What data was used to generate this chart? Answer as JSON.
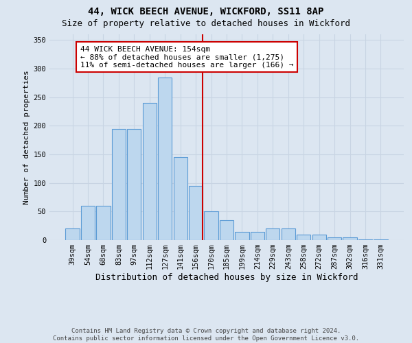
{
  "title": "44, WICK BEECH AVENUE, WICKFORD, SS11 8AP",
  "subtitle": "Size of property relative to detached houses in Wickford",
  "xlabel": "Distribution of detached houses by size in Wickford",
  "ylabel": "Number of detached properties",
  "bar_labels": [
    "39sqm",
    "54sqm",
    "68sqm",
    "83sqm",
    "97sqm",
    "112sqm",
    "127sqm",
    "141sqm",
    "156sqm",
    "170sqm",
    "185sqm",
    "199sqm",
    "214sqm",
    "229sqm",
    "243sqm",
    "258sqm",
    "272sqm",
    "287sqm",
    "302sqm",
    "316sqm",
    "331sqm"
  ],
  "bar_values": [
    20,
    60,
    60,
    195,
    195,
    240,
    285,
    145,
    95,
    50,
    35,
    15,
    15,
    20,
    20,
    10,
    10,
    5,
    5,
    1,
    1
  ],
  "bar_color": "#bdd7ee",
  "bar_edge_color": "#5b9bd5",
  "vline_color": "#cc0000",
  "vline_x": 8.45,
  "annotation_text": "44 WICK BEECH AVENUE: 154sqm\n← 88% of detached houses are smaller (1,275)\n11% of semi-detached houses are larger (166) →",
  "annotation_box_facecolor": "#ffffff",
  "annotation_box_edgecolor": "#cc0000",
  "grid_color": "#c8d4e3",
  "bg_color": "#dce6f1",
  "footer_line1": "Contains HM Land Registry data © Crown copyright and database right 2024.",
  "footer_line2": "Contains public sector information licensed under the Open Government Licence v3.0.",
  "ylim": [
    0,
    360
  ],
  "yticks": [
    0,
    50,
    100,
    150,
    200,
    250,
    300,
    350
  ],
  "title_fontsize": 10,
  "subtitle_fontsize": 9,
  "ylabel_fontsize": 8,
  "xlabel_fontsize": 9,
  "tick_fontsize": 7.5,
  "annot_fontsize": 8
}
